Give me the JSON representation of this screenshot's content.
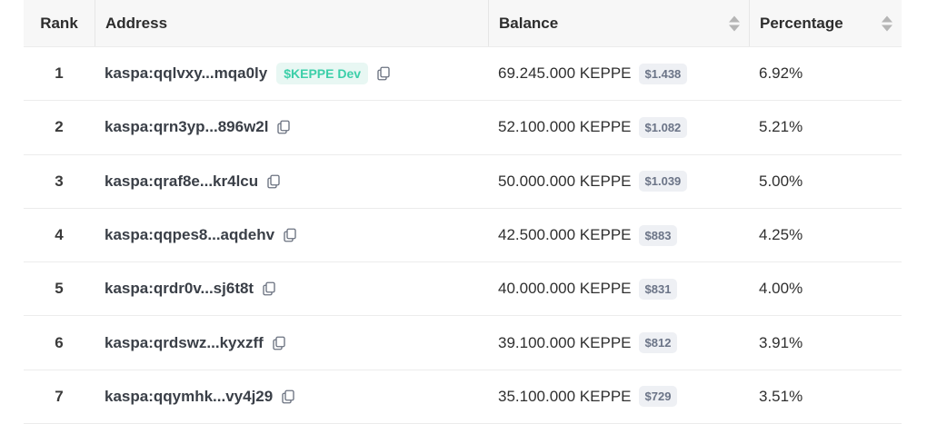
{
  "header": {
    "rank": "Rank",
    "address": "Address",
    "balance": "Balance",
    "percentage": "Percentage"
  },
  "rows": [
    {
      "rank": "1",
      "address": "kaspa:qqlvxy...mqa0ly",
      "tag": "$KEPPE Dev",
      "balance": "69.245.000 KEPPE",
      "usd": "$1.438",
      "percentage": "6.92%"
    },
    {
      "rank": "2",
      "address": "kaspa:qrn3yp...896w2l",
      "tag": "",
      "balance": "52.100.000 KEPPE",
      "usd": "$1.082",
      "percentage": "5.21%"
    },
    {
      "rank": "3",
      "address": "kaspa:qraf8e...kr4lcu",
      "tag": "",
      "balance": "50.000.000 KEPPE",
      "usd": "$1.039",
      "percentage": "5.00%"
    },
    {
      "rank": "4",
      "address": "kaspa:qqpes8...aqdehv",
      "tag": "",
      "balance": "42.500.000 KEPPE",
      "usd": "$883",
      "percentage": "4.25%"
    },
    {
      "rank": "5",
      "address": "kaspa:qrdr0v...sj6t8t",
      "tag": "",
      "balance": "40.000.000 KEPPE",
      "usd": "$831",
      "percentage": "4.00%"
    },
    {
      "rank": "6",
      "address": "kaspa:qrdswz...kyxzff",
      "tag": "",
      "balance": "39.100.000 KEPPE",
      "usd": "$812",
      "percentage": "3.91%"
    },
    {
      "rank": "7",
      "address": "kaspa:qqymhk...vy4j29",
      "tag": "",
      "balance": "35.100.000 KEPPE",
      "usd": "$729",
      "percentage": "3.51%"
    }
  ],
  "colors": {
    "tag_text": "#3ccfa9",
    "tag_bg": "#e8f7f3",
    "badge_bg": "#eef0f4"
  },
  "icons": {
    "copy": "copy-icon",
    "sort": "sort-icon"
  }
}
